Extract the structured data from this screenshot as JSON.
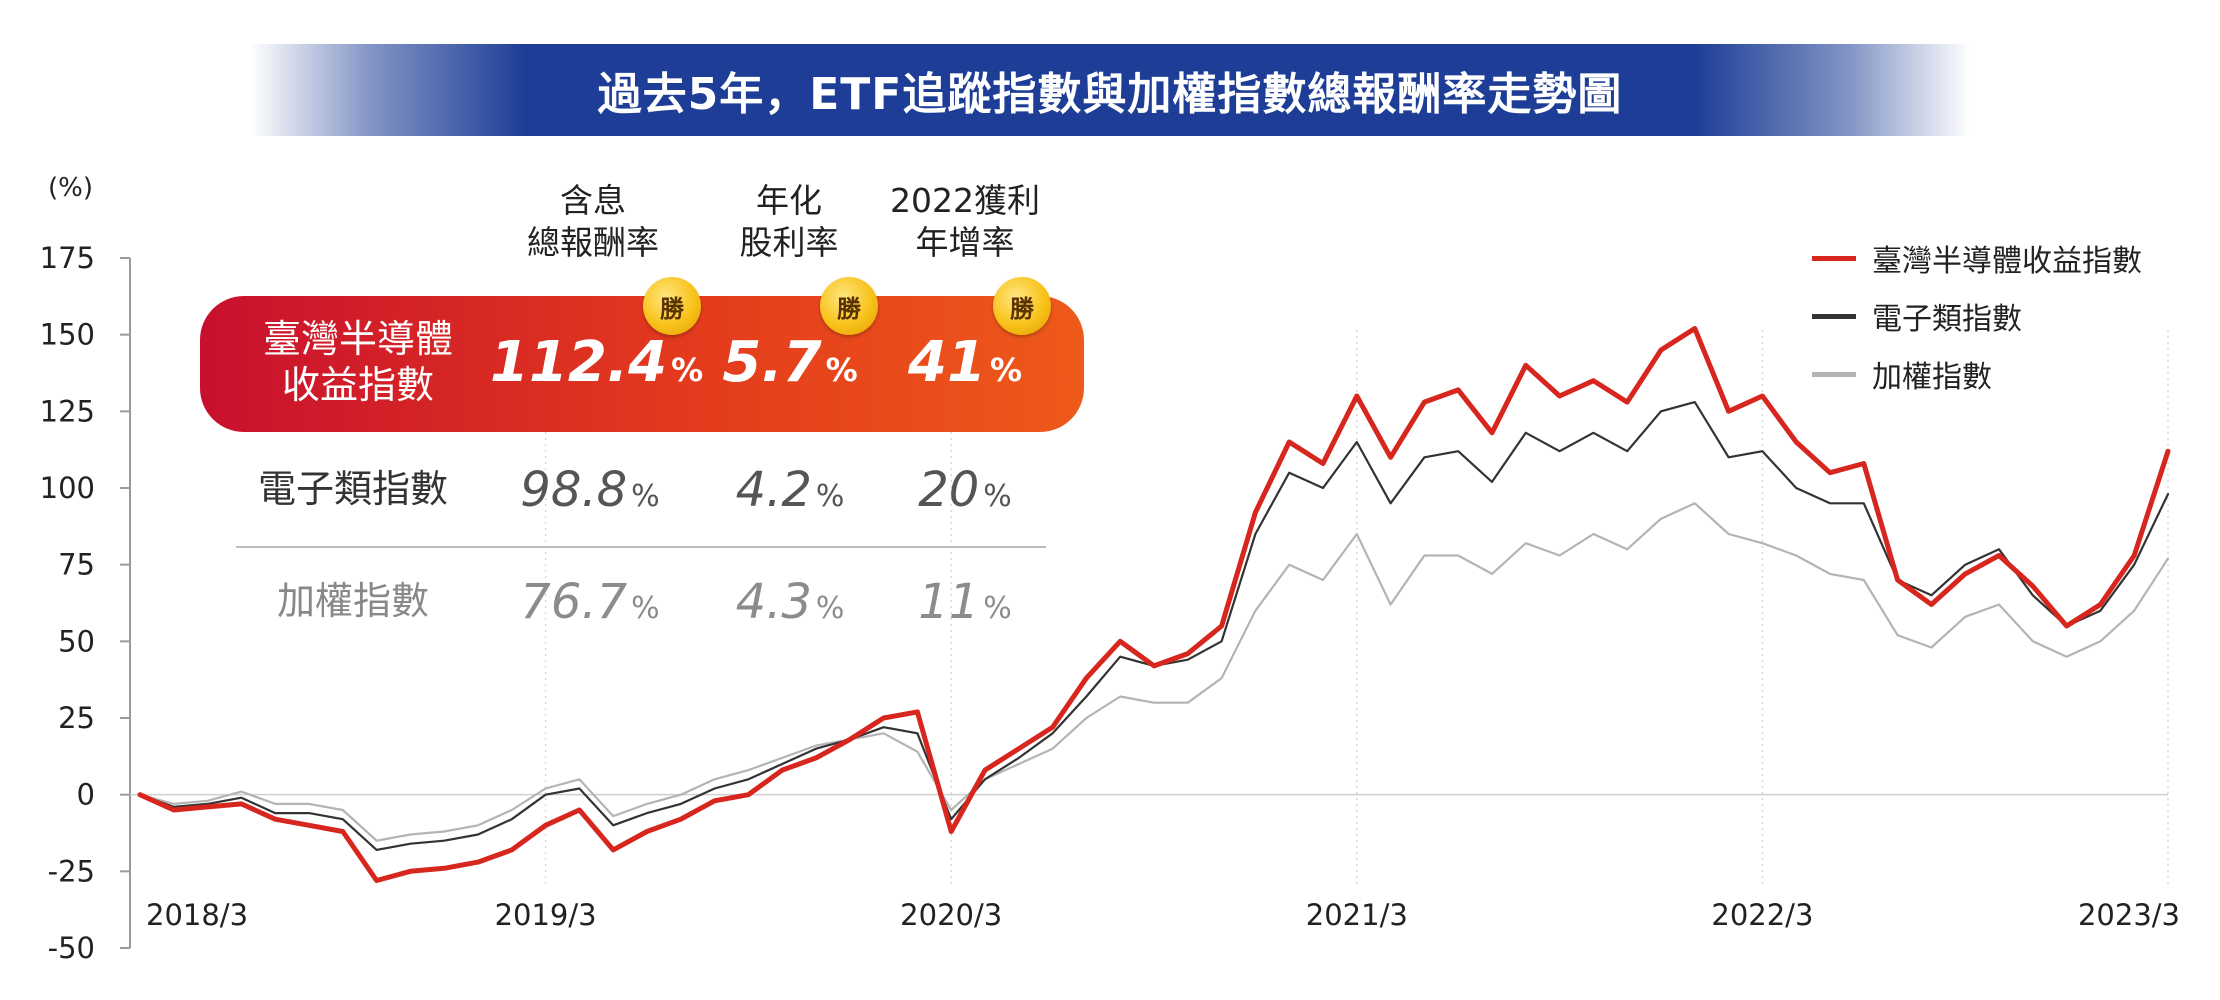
{
  "title": "過去5年，ETF追蹤指數與加權指數總報酬率走勢圖",
  "unit_label": "(%)",
  "table": {
    "headers": [
      {
        "line1": "含息",
        "line2": "總報酬率"
      },
      {
        "line1": "年化",
        "line2": "股利率"
      },
      {
        "line1": "2022獲利",
        "line2": "年增率"
      }
    ],
    "badge_text": "勝",
    "pct_symbol": "%",
    "rows": [
      {
        "name_line1": "臺灣半導體",
        "name_line2": "收益指數",
        "values": [
          "112.4",
          "5.7",
          "41"
        ]
      },
      {
        "name": "電子類指數",
        "values": [
          "98.8",
          "4.2",
          "20"
        ]
      },
      {
        "name": "加權指數",
        "values": [
          "76.7",
          "4.3",
          "11"
        ]
      }
    ]
  },
  "colors": {
    "title_bg": "#1d3d96",
    "semi": "#d7261e",
    "elec": "#333333",
    "taiex": "#b4b4b4",
    "badge": "#f8c21a"
  },
  "chart_data": {
    "type": "line",
    "title": "過去5年，ETF追蹤指數與加權指數總報酬率走勢圖",
    "xlabel": "",
    "ylabel": "(%)",
    "ylim": [
      -50,
      175
    ],
    "yticks": [
      175,
      150,
      125,
      100,
      75,
      50,
      25,
      0,
      -25,
      -50
    ],
    "x_tick_labels": [
      "2018/3",
      "2019/3",
      "2020/3",
      "2021/3",
      "2022/3",
      "2023/3"
    ],
    "x": [
      "2018/3",
      "2018/4",
      "2018/5",
      "2018/6",
      "2018/7",
      "2018/8",
      "2018/9",
      "2018/10",
      "2018/11",
      "2018/12",
      "2019/1",
      "2019/2",
      "2019/3",
      "2019/4",
      "2019/5",
      "2019/6",
      "2019/7",
      "2019/8",
      "2019/9",
      "2019/10",
      "2019/11",
      "2019/12",
      "2020/1",
      "2020/2",
      "2020/3",
      "2020/4",
      "2020/5",
      "2020/6",
      "2020/7",
      "2020/8",
      "2020/9",
      "2020/10",
      "2020/11",
      "2020/12",
      "2021/1",
      "2021/2",
      "2021/3",
      "2021/4",
      "2021/5",
      "2021/6",
      "2021/7",
      "2021/8",
      "2021/9",
      "2021/10",
      "2021/11",
      "2021/12",
      "2022/1",
      "2022/2",
      "2022/3",
      "2022/4",
      "2022/5",
      "2022/6",
      "2022/7",
      "2022/8",
      "2022/9",
      "2022/10",
      "2022/11",
      "2022/12",
      "2023/1",
      "2023/2",
      "2023/3"
    ],
    "grid": "vertical-dotted",
    "legend": "top-right",
    "series": [
      {
        "name": "臺灣半導體收益指數",
        "values": [
          0,
          -5,
          -4,
          -3,
          -8,
          -10,
          -12,
          -28,
          -25,
          -24,
          -22,
          -18,
          -10,
          -5,
          -18,
          -12,
          -8,
          -2,
          0,
          8,
          12,
          18,
          25,
          27,
          -12,
          8,
          15,
          22,
          38,
          50,
          42,
          46,
          55,
          92,
          115,
          108,
          130,
          110,
          128,
          132,
          118,
          140,
          130,
          135,
          128,
          145,
          152,
          125,
          130,
          115,
          105,
          108,
          70,
          62,
          72,
          78,
          68,
          55,
          62,
          78,
          112
        ]
      },
      {
        "name": "電子類指數",
        "values": [
          0,
          -4,
          -3,
          -1,
          -6,
          -6,
          -8,
          -18,
          -16,
          -15,
          -13,
          -8,
          0,
          2,
          -10,
          -6,
          -3,
          2,
          5,
          10,
          15,
          18,
          22,
          20,
          -8,
          5,
          12,
          20,
          32,
          45,
          42,
          44,
          50,
          85,
          105,
          100,
          115,
          95,
          110,
          112,
          102,
          118,
          112,
          118,
          112,
          125,
          128,
          110,
          112,
          100,
          95,
          95,
          70,
          65,
          75,
          80,
          65,
          55,
          60,
          75,
          98
        ]
      },
      {
        "name": "加權指數",
        "values": [
          0,
          -3,
          -2,
          1,
          -3,
          -3,
          -5,
          -15,
          -13,
          -12,
          -10,
          -5,
          2,
          5,
          -7,
          -3,
          0,
          5,
          8,
          12,
          16,
          18,
          20,
          14,
          -5,
          5,
          10,
          15,
          25,
          32,
          30,
          30,
          38,
          60,
          75,
          70,
          85,
          62,
          78,
          78,
          72,
          82,
          78,
          85,
          80,
          90,
          95,
          85,
          82,
          78,
          72,
          70,
          52,
          48,
          58,
          62,
          50,
          45,
          50,
          60,
          77
        ]
      }
    ]
  }
}
